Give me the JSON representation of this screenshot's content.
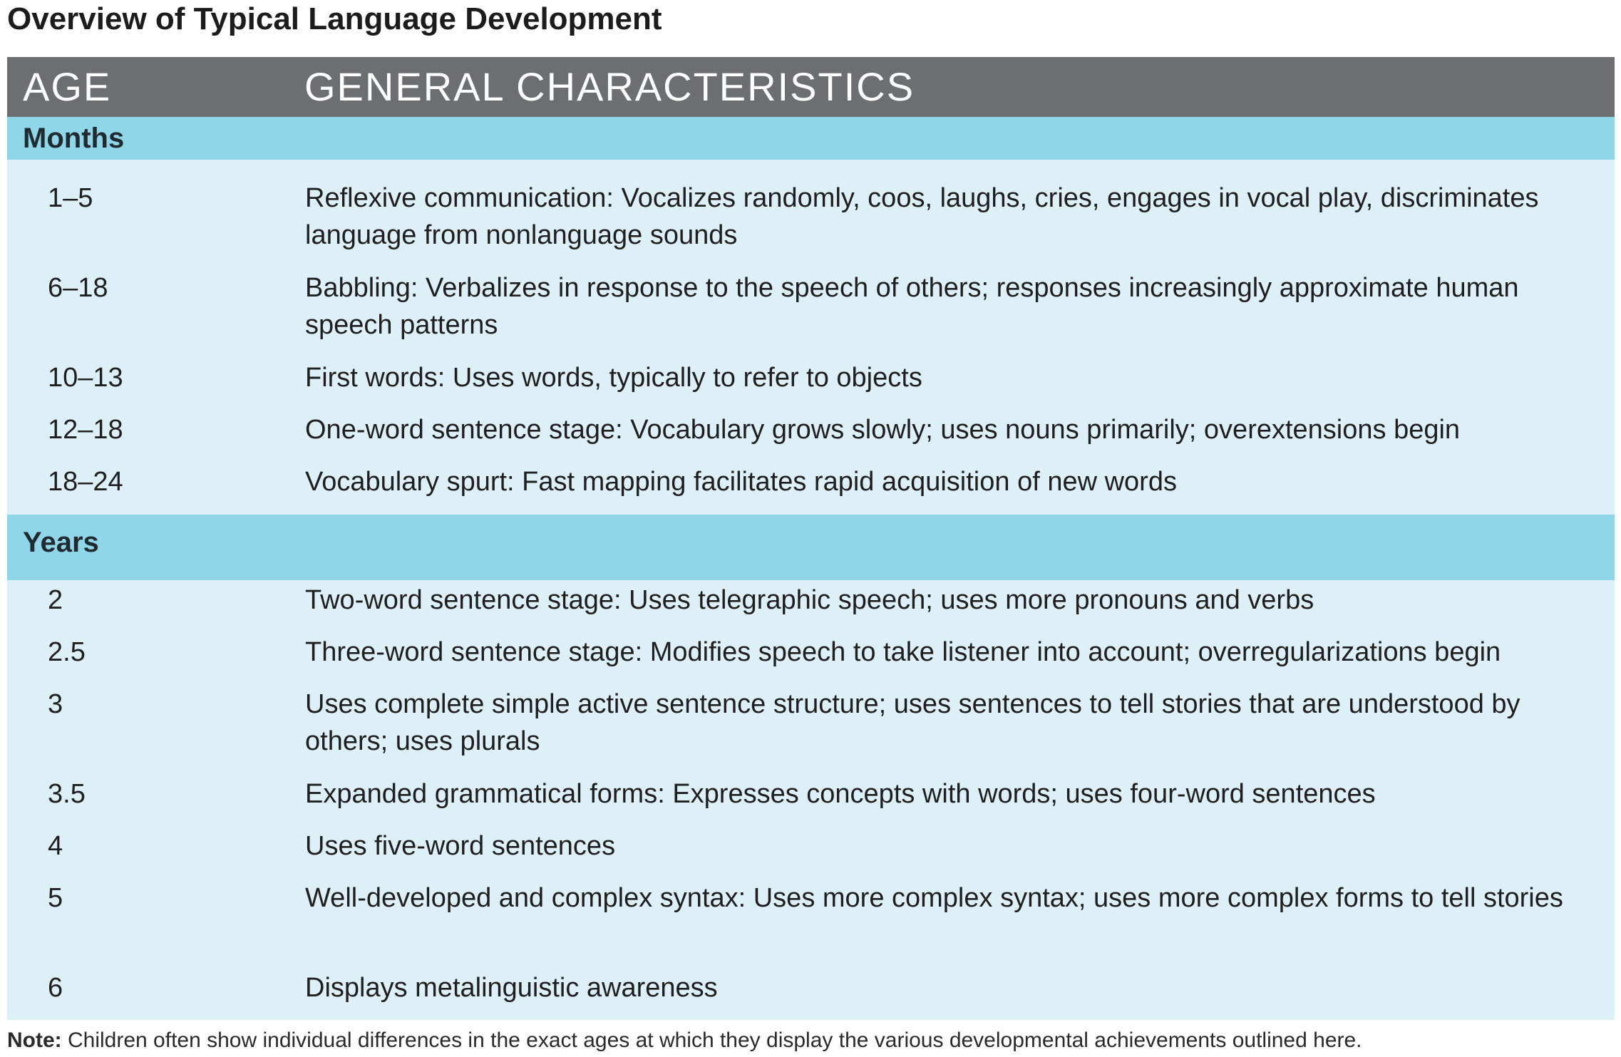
{
  "title": "Overview of Typical Language Development",
  "table": {
    "headers": {
      "age": "AGE",
      "characteristics": "GENERAL CHARACTERISTICS"
    },
    "sections": [
      {
        "label": "Months",
        "rows": [
          {
            "age": "1–5",
            "text": "Reflexive communication: Vocalizes randomly, coos, laughs, cries, engages in vocal play, discriminates language from nonlanguage sounds"
          },
          {
            "age": "6–18",
            "text": "Babbling: Verbalizes in response to the speech of others; responses increasingly approximate human speech patterns"
          },
          {
            "age": "10–13",
            "text": "First words: Uses words, typically to refer to objects"
          },
          {
            "age": "12–18",
            "text": "One-word sentence stage: Vocabulary grows slowly; uses nouns primarily; overextensions begin"
          },
          {
            "age": "18–24",
            "text": "Vocabulary spurt: Fast mapping facilitates rapid acquisition of new words"
          }
        ]
      },
      {
        "label": "Years",
        "rows": [
          {
            "age": "2",
            "text": "Two-word sentence stage: Uses telegraphic speech; uses more pronouns and verbs"
          },
          {
            "age": "2.5",
            "text": "Three-word sentence stage: Modifies speech to take listener into account; overregularizations begin"
          },
          {
            "age": "3",
            "text": "Uses complete simple active sentence structure; uses sentences to tell stories that are understood by others; uses plurals"
          },
          {
            "age": "3.5",
            "text": "Expanded grammatical forms: Expresses concepts with words; uses four-word sentences"
          },
          {
            "age": "4",
            "text": "Uses five-word sentences"
          },
          {
            "age": "5",
            "text": "Well-developed and complex syntax: Uses more complex syntax; uses more complex forms to tell stories"
          },
          {
            "age": "6",
            "text": "Displays metalinguistic awareness"
          }
        ]
      }
    ]
  },
  "note": {
    "label": "Note:",
    "text": " Children often show individual differences in the exact ages at which they display the various developmental achievements outlined here."
  },
  "colors": {
    "header_background": "#6d6e71",
    "section_band": "#8fd6e8",
    "table_background": "#ddeff7"
  }
}
